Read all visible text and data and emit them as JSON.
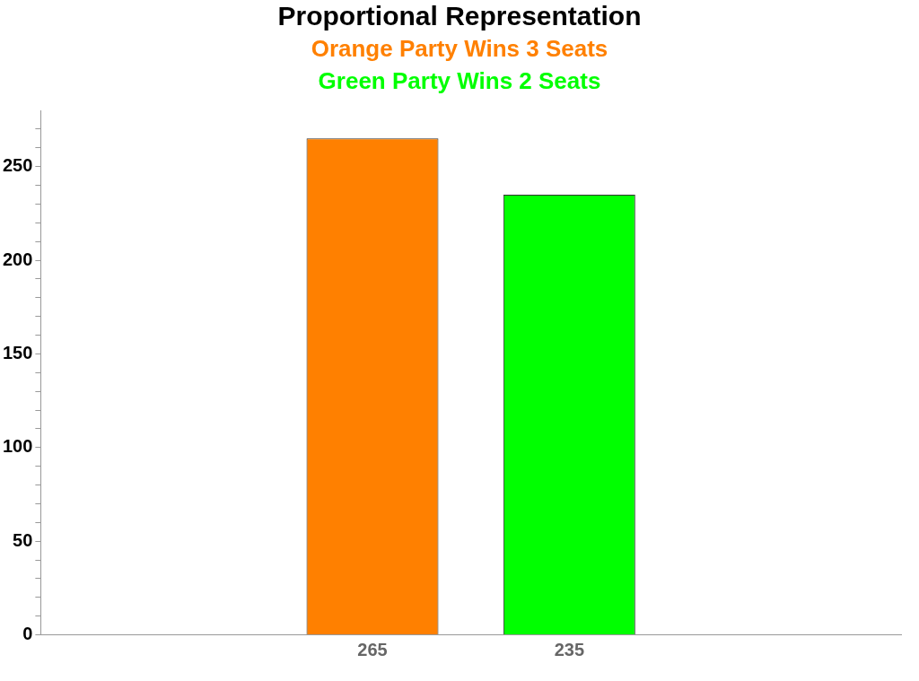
{
  "chart_data": {
    "type": "bar",
    "title": "Proportional Representation",
    "subtitle": "Orange Party Wins 3 Seats",
    "annotations": [
      "Green Party Wins 2 Seats"
    ],
    "categories": [
      null
    ],
    "series": [
      {
        "color": "#ff8000",
        "values": [
          265
        ]
      },
      {
        "color": "#00ff00",
        "values": [
          235
        ]
      }
    ],
    "ylim": [
      0,
      280
    ],
    "yticks": [
      0,
      {
        "value": 10,
        "label": null
      },
      {
        "value": 20,
        "label": null
      },
      {
        "value": 30,
        "label": null
      },
      {
        "value": 40,
        "label": null
      },
      50,
      {
        "value": 60,
        "label": null
      },
      {
        "value": 70,
        "label": null
      },
      {
        "value": 80,
        "label": null
      },
      {
        "value": 90,
        "label": null
      },
      100,
      {
        "value": 110,
        "label": null
      },
      {
        "value": 120,
        "label": null
      },
      {
        "value": 130,
        "label": null
      },
      {
        "value": 140,
        "label": null
      },
      150,
      {
        "value": 160,
        "label": null
      },
      {
        "value": 170,
        "label": null
      },
      {
        "value": 180,
        "label": null
      },
      {
        "value": 190,
        "label": null
      },
      200,
      {
        "value": 210,
        "label": null
      },
      {
        "value": 220,
        "label": null
      },
      {
        "value": 230,
        "label": null
      },
      {
        "value": 240,
        "label": null
      },
      250,
      {
        "value": 260,
        "label": null
      },
      {
        "value": 270,
        "label": null
      }
    ],
    "grid": false,
    "data_labels": true,
    "legend": false
  }
}
